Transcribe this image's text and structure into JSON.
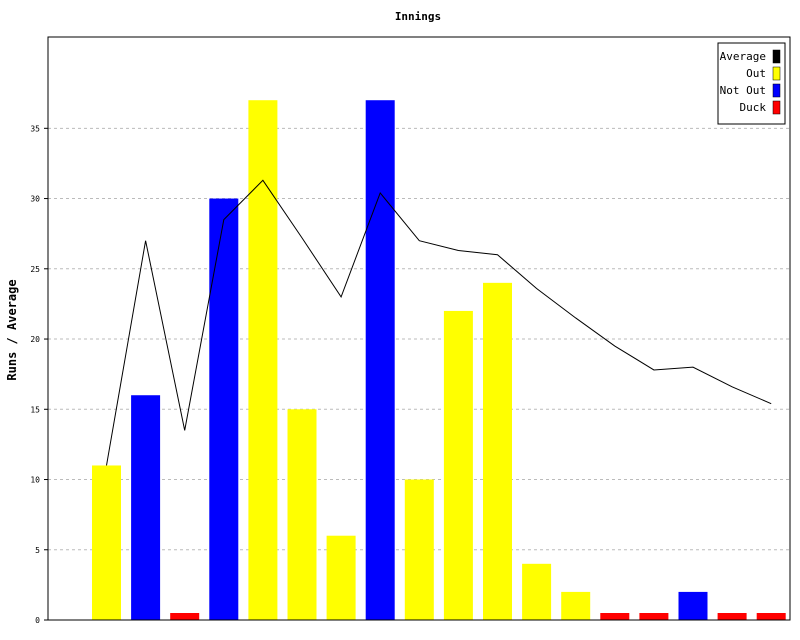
{
  "chart_data": {
    "type": "bar",
    "title": "Innings",
    "xlabel": "",
    "ylabel": "Runs / Average",
    "ylim": [
      0,
      41.5
    ],
    "yticks": [
      0,
      5,
      10,
      15,
      20,
      25,
      30,
      35
    ],
    "grid": true,
    "legend_position": "top-right",
    "legend": [
      {
        "name": "Average",
        "color": "#000000"
      },
      {
        "name": "Out",
        "color": "#ffff00"
      },
      {
        "name": "Not Out",
        "color": "#0000ff"
      },
      {
        "name": "Duck",
        "color": "#ff0000"
      }
    ],
    "bars": [
      {
        "value": 11,
        "status": "Out"
      },
      {
        "value": 16,
        "status": "Not Out"
      },
      {
        "value": 0,
        "status": "Duck"
      },
      {
        "value": 30,
        "status": "Not Out"
      },
      {
        "value": 37,
        "status": "Out"
      },
      {
        "value": 15,
        "status": "Out"
      },
      {
        "value": 6,
        "status": "Out"
      },
      {
        "value": 37,
        "status": "Not Out"
      },
      {
        "value": 10,
        "status": "Out"
      },
      {
        "value": 22,
        "status": "Out"
      },
      {
        "value": 24,
        "status": "Out"
      },
      {
        "value": 4,
        "status": "Out"
      },
      {
        "value": 2,
        "status": "Out"
      },
      {
        "value": 0,
        "status": "Duck"
      },
      {
        "value": 0,
        "status": "Duck"
      },
      {
        "value": 2,
        "status": "Not Out"
      },
      {
        "value": 0,
        "status": "Duck"
      },
      {
        "value": 0,
        "status": "Duck"
      }
    ],
    "average": [
      11,
      27,
      13.5,
      28.5,
      31.3,
      27.2,
      23,
      30.4,
      27,
      26.3,
      26,
      23.6,
      21.5,
      19.5,
      17.8,
      18,
      16.6,
      15.4
    ]
  }
}
